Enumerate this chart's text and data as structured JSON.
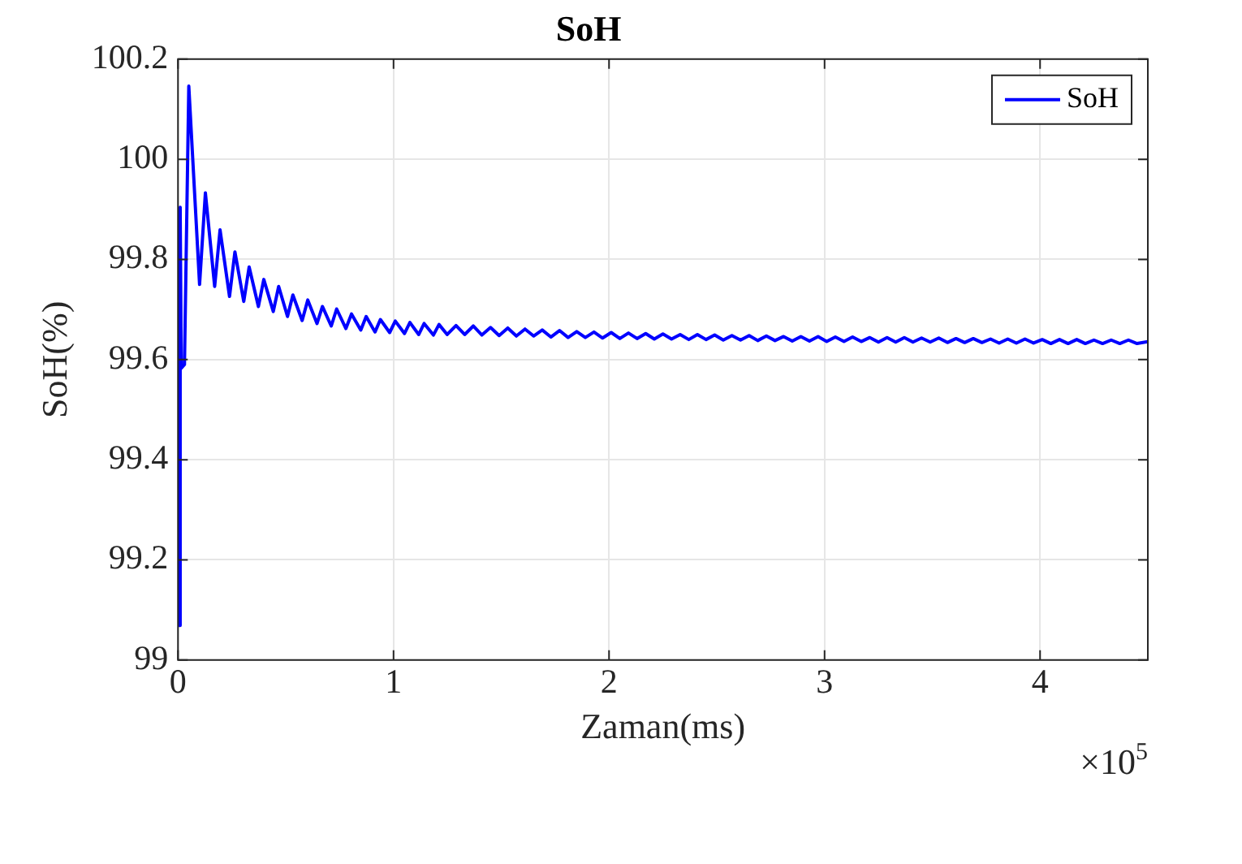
{
  "chart_data": {
    "type": "line",
    "title": "SoH",
    "xlabel": "Zaman(ms)",
    "ylabel": "SoH(%)",
    "annotations": [
      "×10$^{5}$"
    ],
    "xlim": [
      0,
      4.5
    ],
    "xticks": [
      0,
      1,
      2,
      3,
      4
    ],
    "ylim": [
      99,
      100.2
    ],
    "yticks": [
      99,
      99.2,
      99.4,
      99.6,
      99.8,
      100,
      100.2
    ],
    "grid": true,
    "legend": "top right",
    "marker": "none",
    "line_style": "solid",
    "series": [
      {
        "name": "SoH",
        "color": "#0000ff",
        "x": [
          0,
          0.005,
          0.01,
          0.015,
          0.03,
          0.05,
          0.1,
          0.127,
          0.17,
          0.195,
          0.239,
          0.264,
          0.305,
          0.33,
          0.373,
          0.398,
          0.442,
          0.467,
          0.508,
          0.533,
          0.576,
          0.602,
          0.645,
          0.67,
          0.711,
          0.736,
          0.779,
          0.805,
          0.848,
          0.873,
          0.914,
          0.939,
          0.982,
          1.008,
          1.051,
          1.076,
          1.117,
          1.142,
          1.185,
          1.211,
          1.249,
          1.29,
          1.33,
          1.37,
          1.41,
          1.45,
          1.49,
          1.53,
          1.57,
          1.61,
          1.65,
          1.69,
          1.73,
          1.77,
          1.81,
          1.85,
          1.89,
          1.93,
          1.97,
          2.01,
          2.05,
          2.09,
          2.13,
          2.17,
          2.21,
          2.25,
          2.29,
          2.33,
          2.37,
          2.41,
          2.45,
          2.49,
          2.53,
          2.57,
          2.61,
          2.65,
          2.69,
          2.73,
          2.77,
          2.81,
          2.85,
          2.89,
          2.93,
          2.97,
          3.01,
          3.05,
          3.09,
          3.13,
          3.17,
          3.21,
          3.25,
          3.29,
          3.33,
          3.37,
          3.41,
          3.45,
          3.49,
          3.53,
          3.57,
          3.61,
          3.65,
          3.69,
          3.73,
          3.77,
          3.81,
          3.85,
          3.89,
          3.93,
          3.97,
          4.01,
          4.05,
          4.09,
          4.13,
          4.17,
          4.21,
          4.25,
          4.29,
          4.33,
          4.37,
          4.41,
          4.45,
          4.5
        ],
        "values": [
          99.607,
          99.069,
          99.904,
          99.583,
          99.59,
          100.146,
          99.75,
          99.933,
          99.746,
          99.859,
          99.726,
          99.815,
          99.716,
          99.785,
          99.706,
          99.76,
          99.696,
          99.746,
          99.686,
          99.729,
          99.678,
          99.719,
          99.672,
          99.706,
          99.667,
          99.701,
          99.662,
          99.691,
          99.659,
          99.686,
          99.655,
          99.68,
          99.654,
          99.677,
          99.652,
          99.674,
          99.65,
          99.672,
          99.649,
          99.67,
          99.65,
          99.668,
          99.65,
          99.667,
          99.649,
          99.664,
          99.648,
          99.663,
          99.647,
          99.661,
          99.647,
          99.659,
          99.645,
          99.658,
          99.644,
          99.656,
          99.644,
          99.655,
          99.643,
          99.654,
          99.642,
          99.653,
          99.642,
          99.652,
          99.641,
          99.651,
          99.641,
          99.65,
          99.64,
          99.65,
          99.64,
          99.649,
          99.639,
          99.648,
          99.639,
          99.648,
          99.638,
          99.647,
          99.638,
          99.646,
          99.637,
          99.646,
          99.637,
          99.646,
          99.636,
          99.645,
          99.636,
          99.645,
          99.636,
          99.644,
          99.635,
          99.644,
          99.635,
          99.644,
          99.635,
          99.643,
          99.635,
          99.643,
          99.634,
          99.642,
          99.634,
          99.642,
          99.634,
          99.641,
          99.633,
          99.641,
          99.633,
          99.641,
          99.633,
          99.64,
          99.632,
          99.64,
          99.632,
          99.64,
          99.632,
          99.639,
          99.632,
          99.639,
          99.632,
          99.639,
          99.632,
          99.636
        ]
      }
    ]
  }
}
